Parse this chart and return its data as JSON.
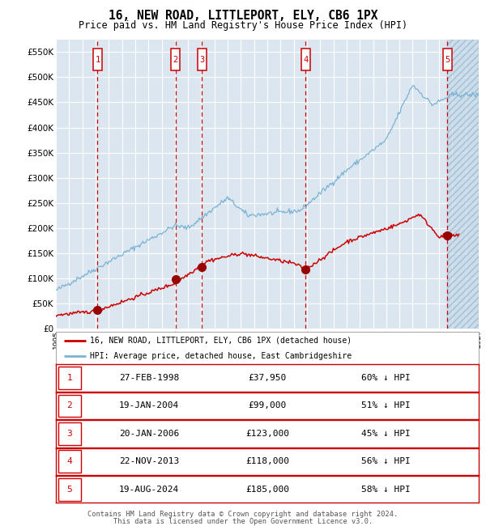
{
  "title": "16, NEW ROAD, LITTLEPORT, ELY, CB6 1PX",
  "subtitle": "Price paid vs. HM Land Registry's House Price Index (HPI)",
  "hpi_label": "HPI: Average price, detached house, East Cambridgeshire",
  "price_label": "16, NEW ROAD, LITTLEPORT, ELY, CB6 1PX (detached house)",
  "footer_line1": "Contains HM Land Registry data © Crown copyright and database right 2024.",
  "footer_line2": "This data is licensed under the Open Government Licence v3.0.",
  "ylim": [
    0,
    575000
  ],
  "yticks": [
    0,
    50000,
    100000,
    150000,
    200000,
    250000,
    300000,
    350000,
    400000,
    450000,
    500000,
    550000
  ],
  "xlim_start": 1995.0,
  "xlim_end": 2027.0,
  "transactions": [
    {
      "num": 1,
      "date_str": "27-FEB-1998",
      "date_x": 1998.15,
      "price": 37950,
      "pct": "60% ↓ HPI"
    },
    {
      "num": 2,
      "date_str": "19-JAN-2004",
      "date_x": 2004.05,
      "price": 99000,
      "pct": "51% ↓ HPI"
    },
    {
      "num": 3,
      "date_str": "20-JAN-2006",
      "date_x": 2006.05,
      "price": 123000,
      "pct": "45% ↓ HPI"
    },
    {
      "num": 4,
      "date_str": "22-NOV-2013",
      "date_x": 2013.9,
      "price": 118000,
      "pct": "56% ↓ HPI"
    },
    {
      "num": 5,
      "date_str": "19-AUG-2024",
      "date_x": 2024.63,
      "price": 185000,
      "pct": "58% ↓ HPI"
    }
  ],
  "background_color": "#ffffff",
  "plot_bg_color": "#dce6f0",
  "grid_color": "#ffffff",
  "hpi_color": "#7ab3d4",
  "price_color": "#cc0000",
  "vline_color": "#cc0000",
  "marker_color": "#990000",
  "hatched_region_start": 2024.63,
  "hatched_region_end": 2027.0
}
